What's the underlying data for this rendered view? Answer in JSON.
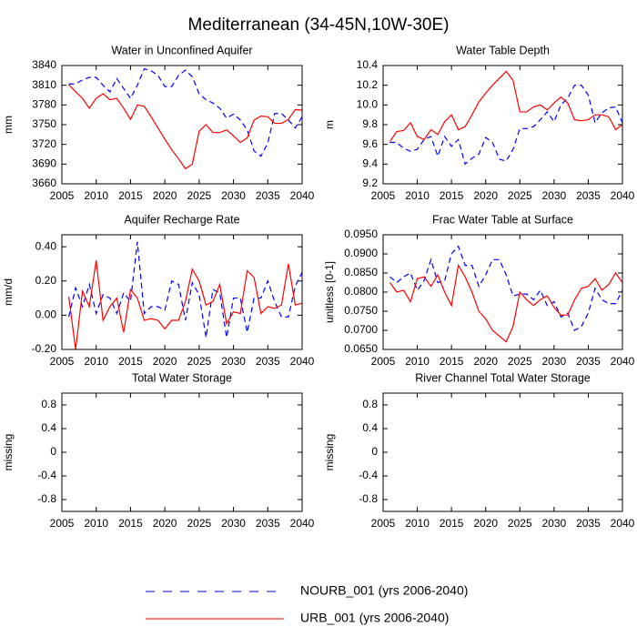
{
  "title": "Mediterranean (34-45N,10W-30E)",
  "chart_data": [
    {
      "type": "line",
      "title": "Water in Unconfined Aquifer",
      "ylabel": "mm",
      "x": [
        2006,
        2007,
        2008,
        2009,
        2010,
        2011,
        2012,
        2013,
        2014,
        2015,
        2016,
        2017,
        2018,
        2019,
        2020,
        2021,
        2022,
        2023,
        2024,
        2025,
        2026,
        2027,
        2028,
        2029,
        2030,
        2031,
        2032,
        2033,
        2034,
        2035,
        2036,
        2037,
        2038,
        2039,
        2040
      ],
      "series": [
        {
          "name": "NOURB_001 (yrs 2006-2040)",
          "color": "#0000ff",
          "dashed": true,
          "values": [
            3812,
            3812,
            3818,
            3822,
            3822,
            3810,
            3800,
            3820,
            3805,
            3790,
            3810,
            3835,
            3832,
            3825,
            3808,
            3808,
            3825,
            3833,
            3823,
            3797,
            3788,
            3783,
            3775,
            3760,
            3766,
            3757,
            3742,
            3710,
            3702,
            3722,
            3767,
            3767,
            3757,
            3745,
            3762
          ]
        },
        {
          "name": "URB_001 (yrs 2006-2040)",
          "color": "#ff0000",
          "dashed": false,
          "values": [
            3811,
            3800,
            3790,
            3775,
            3790,
            3797,
            3788,
            3790,
            3775,
            3758,
            3780,
            3778,
            3762,
            3745,
            3728,
            3712,
            3698,
            3683,
            3690,
            3740,
            3750,
            3738,
            3738,
            3742,
            3733,
            3723,
            3730,
            3757,
            3763,
            3762,
            3752,
            3752,
            3758,
            3773,
            3772
          ]
        }
      ],
      "xlim": [
        2005,
        2040
      ],
      "xticks": [
        2005,
        2010,
        2015,
        2020,
        2025,
        2030,
        2035,
        2040
      ],
      "ylim": [
        3660,
        3840
      ],
      "yticks": [
        3660,
        3690,
        3720,
        3750,
        3780,
        3810,
        3840
      ]
    },
    {
      "type": "line",
      "title": "Water Table Depth",
      "ylabel": "m",
      "x": [
        2006,
        2007,
        2008,
        2009,
        2010,
        2011,
        2012,
        2013,
        2014,
        2015,
        2016,
        2017,
        2018,
        2019,
        2020,
        2021,
        2022,
        2023,
        2024,
        2025,
        2026,
        2027,
        2028,
        2029,
        2030,
        2031,
        2032,
        2033,
        2034,
        2035,
        2036,
        2037,
        2038,
        2039,
        2040
      ],
      "series": [
        {
          "name": "NOURB_001 (yrs 2006-2040)",
          "color": "#0000ff",
          "dashed": true,
          "values": [
            9.62,
            9.62,
            9.56,
            9.53,
            9.55,
            9.65,
            9.68,
            9.48,
            9.68,
            9.58,
            9.65,
            9.4,
            9.46,
            9.5,
            9.67,
            9.62,
            9.45,
            9.43,
            9.55,
            9.76,
            9.76,
            9.78,
            9.85,
            9.93,
            9.83,
            10.0,
            10.07,
            10.2,
            10.2,
            10.1,
            9.82,
            9.92,
            9.97,
            9.98,
            9.82
          ]
        },
        {
          "name": "URB_001 (yrs 2006-2040)",
          "color": "#ff0000",
          "dashed": false,
          "values": [
            9.63,
            9.73,
            9.74,
            9.82,
            9.68,
            9.65,
            9.75,
            9.7,
            9.83,
            9.9,
            9.75,
            9.78,
            9.9,
            10.03,
            10.12,
            10.2,
            10.27,
            10.34,
            10.25,
            9.93,
            9.93,
            9.98,
            10.0,
            9.95,
            10.02,
            10.08,
            10.02,
            9.85,
            9.84,
            9.85,
            9.9,
            9.9,
            9.88,
            9.75,
            9.8
          ]
        }
      ],
      "xlim": [
        2005,
        2040
      ],
      "xticks": [
        2005,
        2010,
        2015,
        2020,
        2025,
        2030,
        2035,
        2040
      ],
      "ylim": [
        9.2,
        10.4
      ],
      "yticks": [
        9.2,
        9.4,
        9.6,
        9.8,
        {
          "value": 10,
          "label": "10.0"
        },
        10.2,
        10.4
      ]
    },
    {
      "type": "line",
      "title": "Aquifer Recharge Rate",
      "ylabel": "mm/d",
      "x": [
        2006,
        2007,
        2008,
        2009,
        2010,
        2011,
        2012,
        2013,
        2014,
        2015,
        2016,
        2017,
        2018,
        2019,
        2020,
        2021,
        2022,
        2023,
        2024,
        2025,
        2026,
        2027,
        2028,
        2029,
        2030,
        2031,
        2032,
        2033,
        2034,
        2035,
        2036,
        2037,
        2038,
        2039,
        2040
      ],
      "series": [
        {
          "name": "NOURB_001 (yrs 2006-2040)",
          "color": "#0000ff",
          "dashed": true,
          "values": [
            -0.01,
            0.16,
            0.05,
            0.18,
            0.01,
            0.12,
            0.1,
            0.01,
            0.13,
            0.08,
            0.43,
            0.01,
            0.05,
            0.05,
            0.03,
            0.2,
            0.18,
            -0.03,
            0.19,
            0.12,
            -0.13,
            0.15,
            0.13,
            -0.13,
            0.1,
            0.1,
            -0.1,
            0.1,
            0.1,
            0.2,
            0.08,
            -0.01,
            -0.01,
            0.17,
            0.25
          ]
        },
        {
          "name": "URB_001 (yrs 2006-2040)",
          "color": "#ff0000",
          "dashed": false,
          "values": [
            0.11,
            -0.2,
            0.14,
            0.05,
            0.32,
            -0.03,
            0.05,
            0.1,
            -0.1,
            0.15,
            0.1,
            -0.03,
            -0.02,
            -0.03,
            -0.08,
            -0.03,
            -0.03,
            0.08,
            0.27,
            0.2,
            0.06,
            0.08,
            0.18,
            -0.05,
            0.02,
            0.01,
            0.26,
            0.22,
            0.01,
            0.05,
            0.04,
            0.06,
            0.3,
            0.06,
            0.07
          ]
        }
      ],
      "xlim": [
        2005,
        2040
      ],
      "xticks": [
        2005,
        2010,
        2015,
        2020,
        2025,
        2030,
        2035,
        2040
      ],
      "ylim": [
        -0.2,
        0.47
      ],
      "yticks": [
        {
          "value": -0.2,
          "label": "-0.20"
        },
        {
          "value": 0,
          "label": "0.00"
        },
        {
          "value": 0.2,
          "label": "0.20"
        },
        {
          "value": 0.4,
          "label": "0.40"
        }
      ]
    },
    {
      "type": "line",
      "title": "Frac Water Table at Surface",
      "ylabel": "unitless [0-1]",
      "x": [
        2006,
        2007,
        2008,
        2009,
        2010,
        2011,
        2012,
        2013,
        2014,
        2015,
        2016,
        2017,
        2018,
        2019,
        2020,
        2021,
        2022,
        2023,
        2024,
        2025,
        2026,
        2027,
        2028,
        2029,
        2030,
        2031,
        2032,
        2033,
        2034,
        2035,
        2036,
        2037,
        2038,
        2039,
        2040
      ],
      "series": [
        {
          "name": "NOURB_001 (yrs 2006-2040)",
          "color": "#0000ff",
          "dashed": true,
          "values": [
            0.084,
            0.0825,
            0.084,
            0.085,
            0.0805,
            0.083,
            0.0885,
            0.0825,
            0.083,
            0.09,
            0.092,
            0.087,
            0.087,
            0.0815,
            0.0845,
            0.0885,
            0.0885,
            0.0845,
            0.079,
            0.0795,
            0.0795,
            0.078,
            0.0805,
            0.0765,
            0.0775,
            0.0735,
            0.0745,
            0.07,
            0.071,
            0.0745,
            0.081,
            0.078,
            0.077,
            0.077,
            0.0805
          ]
        },
        {
          "name": "URB_001 (yrs 2006-2040)",
          "color": "#ff0000",
          "dashed": false,
          "values": [
            0.0825,
            0.08,
            0.0805,
            0.0775,
            0.0835,
            0.084,
            0.0815,
            0.0845,
            0.08,
            0.0765,
            0.087,
            0.084,
            0.08,
            0.075,
            0.073,
            0.07,
            0.0685,
            0.067,
            0.071,
            0.08,
            0.078,
            0.0765,
            0.078,
            0.079,
            0.076,
            0.074,
            0.074,
            0.078,
            0.081,
            0.0815,
            0.0835,
            0.0805,
            0.082,
            0.085,
            0.0825
          ]
        }
      ],
      "xlim": [
        2005,
        2040
      ],
      "xticks": [
        2005,
        2010,
        2015,
        2020,
        2025,
        2030,
        2035,
        2040
      ],
      "ylim": [
        0.065,
        0.095
      ],
      "yticks": [
        {
          "value": 0.065,
          "label": "0.0650"
        },
        {
          "value": 0.07,
          "label": "0.0700"
        },
        {
          "value": 0.075,
          "label": "0.0750"
        },
        {
          "value": 0.08,
          "label": "0.0800"
        },
        {
          "value": 0.085,
          "label": "0.0850"
        },
        {
          "value": 0.09,
          "label": "0.0900"
        },
        {
          "value": 0.095,
          "label": "0.0950"
        }
      ]
    },
    {
      "type": "line",
      "title": "Total Water Storage",
      "ylabel": "missing",
      "xlim": [
        2005,
        2040
      ],
      "xticks": [
        2005,
        2010,
        2015,
        2020,
        2025,
        2030,
        2035,
        2040
      ],
      "ylim": [
        -1,
        1
      ],
      "yticks": [
        -0.8,
        -0.4,
        0,
        0.4,
        0.8
      ]
    },
    {
      "type": "line",
      "title": "River Channel Total Water Storage",
      "ylabel": "missing",
      "xlim": [
        2005,
        2040
      ],
      "xticks": [
        2005,
        2010,
        2015,
        2020,
        2025,
        2030,
        2035,
        2040
      ],
      "ylim": [
        -1,
        1
      ],
      "yticks": [
        -0.8,
        -0.4,
        0,
        0.4,
        0.8
      ]
    }
  ]
}
